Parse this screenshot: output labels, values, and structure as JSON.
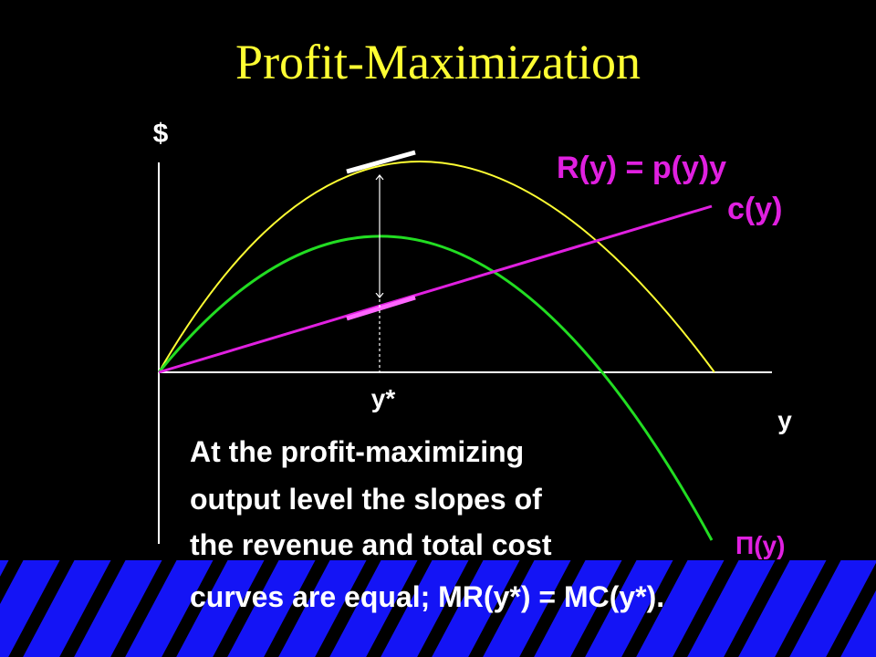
{
  "title": "Profit-Maximization",
  "axes": {
    "y_axis_label": "$",
    "x_axis_label": "y",
    "marked_point": "y*"
  },
  "curves": {
    "revenue": "R(y) = p(y)y",
    "cost": "c(y)",
    "profit": "Π(y)"
  },
  "text": [
    "At the profit-maximizing",
    "output level the slopes of",
    "the revenue and total cost",
    "curves are equal; MR(y*) = MC(y*)."
  ]
}
